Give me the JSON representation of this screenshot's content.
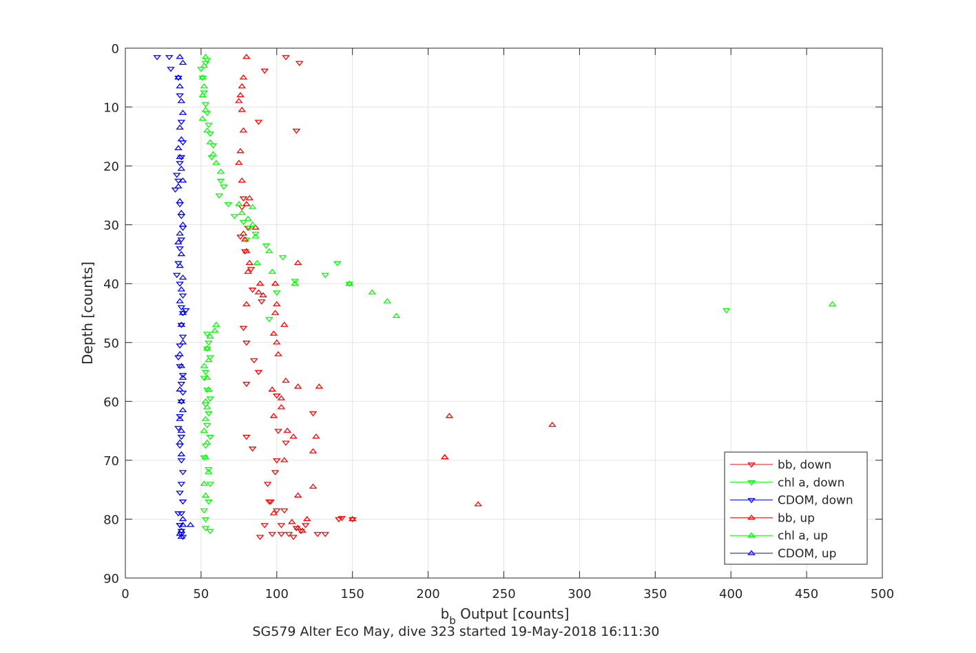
{
  "chart_data": {
    "type": "scatter",
    "title": "",
    "xlabel_main": "b",
    "xlabel_sub": "b",
    "xlabel_rest": " Output [counts]",
    "subtitle": "SG579 Alter Eco May, dive 323 started 19-May-2018 16:11:30",
    "ylabel": "Depth [counts]",
    "xlim": [
      0,
      500
    ],
    "ylim": [
      0,
      90
    ],
    "y_reversed": true,
    "grid": true,
    "legend_position": "bottom-right",
    "xticks": [
      0,
      50,
      100,
      150,
      200,
      250,
      300,
      350,
      400,
      450,
      500
    ],
    "yticks": [
      0,
      10,
      20,
      30,
      40,
      50,
      60,
      70,
      80,
      90
    ],
    "series": [
      {
        "name": "bb, down",
        "color": "#ff0000",
        "marker": "down",
        "x": [
          106,
          115,
          92,
          113,
          88,
          78,
          77,
          81,
          76,
          79,
          83,
          84,
          90,
          78,
          80,
          85,
          88,
          80,
          100,
          124,
          101,
          80,
          84,
          106,
          100,
          99,
          94,
          96,
          95,
          100,
          105,
          92,
          103,
          116,
          108,
          89,
          97,
          103,
          141,
          143,
          150,
          132,
          119,
          111,
          127,
          113
        ],
        "y": [
          1.5,
          2.5,
          3.8,
          14,
          12.5,
          25.5,
          27,
          30.5,
          32,
          34.5,
          37.5,
          41,
          43,
          47.5,
          50,
          53,
          55,
          57,
          59,
          62,
          65,
          66,
          68,
          67,
          70,
          72,
          74,
          77,
          77,
          78.5,
          78.5,
          81,
          81,
          82,
          82.5,
          83,
          82.5,
          82.5,
          80,
          79.8,
          80,
          82.5,
          81,
          83,
          82.5,
          81.5
        ]
      },
      {
        "name": "chl a, down",
        "color": "#00ff00",
        "marker": "down",
        "x": [
          54,
          53,
          50,
          51,
          52,
          53,
          54,
          55,
          56,
          58,
          57,
          63,
          65,
          62,
          68,
          72,
          78,
          82,
          80,
          86,
          93,
          104,
          140,
          132,
          112,
          148,
          100,
          95,
          397,
          54,
          55,
          54,
          56,
          53,
          52,
          54,
          56,
          53,
          55,
          54,
          56,
          53,
          52,
          55,
          56,
          55,
          52,
          53,
          53,
          56
        ],
        "y": [
          2,
          2.5,
          3.5,
          5,
          7.5,
          9.5,
          11,
          13,
          14.5,
          16.5,
          18.5,
          22.5,
          23.5,
          25,
          26.5,
          28.5,
          29.5,
          30.5,
          32.5,
          31.5,
          33.5,
          35.5,
          36.5,
          38.5,
          39.5,
          40,
          41.5,
          46,
          44.5,
          48.5,
          50,
          51,
          52.5,
          55,
          56,
          58,
          59.5,
          60.5,
          62,
          64,
          66,
          67.5,
          69.5,
          71.5,
          74,
          77,
          78.5,
          80,
          81.5,
          82
        ]
      },
      {
        "name": "CDOM, down",
        "color": "#0000ff",
        "marker": "down",
        "x": [
          21,
          29,
          30,
          35,
          36,
          37,
          38,
          37,
          36,
          34,
          35,
          33,
          36,
          37,
          38,
          37,
          36,
          35,
          34,
          36,
          38,
          37,
          40,
          38,
          37,
          38,
          36,
          35,
          36,
          38,
          37,
          38,
          37,
          36,
          35,
          37,
          36,
          37,
          38,
          37,
          36,
          38,
          37,
          36,
          37,
          38,
          37,
          36,
          35
        ],
        "y": [
          1.5,
          1.5,
          3.5,
          5,
          8,
          12.5,
          16,
          18.5,
          19.5,
          21.5,
          22.5,
          24,
          26.5,
          28.5,
          30.5,
          32.5,
          34,
          36.5,
          38.5,
          40,
          42,
          44,
          44.5,
          45,
          47,
          49,
          50.5,
          52.5,
          54,
          55.5,
          57,
          58.5,
          60,
          62.5,
          64.5,
          66,
          67.5,
          70,
          72,
          74,
          75.5,
          77,
          79,
          81,
          82.5,
          83,
          82,
          81,
          79
        ]
      },
      {
        "name": "bb, up",
        "color": "#ff0000",
        "marker": "up",
        "x": [
          80,
          78,
          77,
          76,
          75,
          77,
          78,
          76,
          75,
          77,
          82,
          80,
          86,
          78,
          79,
          80,
          82,
          81,
          89,
          91,
          114,
          99,
          88,
          100,
          99,
          80,
          105,
          98,
          100,
          101,
          106,
          97,
          114,
          103,
          103,
          128,
          98,
          107,
          214,
          282,
          111,
          124,
          126,
          211,
          211,
          105,
          233,
          124,
          114,
          98,
          120,
          117,
          150,
          114,
          110
        ],
        "y": [
          1.5,
          5,
          6.5,
          8,
          9,
          10.5,
          14,
          17.5,
          19.5,
          22.5,
          25.5,
          26.5,
          30.5,
          31.5,
          32.5,
          34.5,
          36.5,
          38,
          40,
          42,
          36.5,
          40,
          41.5,
          43.5,
          45,
          43.5,
          47,
          48.5,
          50,
          52,
          56.5,
          58,
          57.5,
          59.5,
          61,
          57.5,
          62.5,
          65,
          62.5,
          64,
          66,
          68.5,
          66,
          69.5,
          69.5,
          70,
          77.5,
          74.5,
          76,
          79,
          80,
          82,
          80,
          81.5,
          80.5
        ]
      },
      {
        "name": "chl a, up",
        "color": "#00ff00",
        "marker": "up",
        "x": [
          53,
          52,
          51,
          52,
          51,
          53,
          51,
          54,
          56,
          58,
          60,
          63,
          75,
          77,
          81,
          84,
          84,
          86,
          87,
          95,
          97,
          112,
          148,
          163,
          173,
          179,
          467,
          60,
          59,
          56,
          54,
          55,
          52,
          54,
          55,
          53,
          54,
          53,
          52,
          54,
          53,
          55,
          52,
          53
        ],
        "y": [
          1.5,
          3,
          5,
          6.5,
          8,
          10.5,
          12,
          14,
          16,
          18,
          19.5,
          21,
          26.5,
          28,
          29,
          27,
          30,
          32,
          36.5,
          34.5,
          38,
          40,
          40,
          41.5,
          43,
          45.5,
          43.5,
          47,
          48,
          49,
          51,
          53,
          54,
          56,
          58,
          60,
          61,
          63,
          65,
          67,
          69.5,
          72,
          74,
          76
        ]
      },
      {
        "name": "CDOM, up",
        "color": "#0000ff",
        "marker": "up",
        "x": [
          36,
          38,
          35,
          36,
          37,
          38,
          36,
          37,
          35,
          36,
          37,
          38,
          35,
          36,
          37,
          38,
          36,
          35,
          37,
          36,
          38,
          37,
          36,
          38,
          37,
          38,
          36,
          37,
          38,
          36,
          37,
          38,
          36,
          37,
          36,
          37,
          43,
          38,
          37,
          36,
          37,
          38
        ],
        "y": [
          1.5,
          2.5,
          5,
          6.5,
          9,
          11,
          13.5,
          15.5,
          17,
          18.5,
          20.5,
          22.5,
          23.5,
          26,
          28,
          30,
          31.5,
          33,
          35,
          37,
          39,
          41,
          43,
          45,
          47,
          50,
          52,
          54,
          56,
          58,
          60,
          61.5,
          63,
          65,
          67,
          69,
          81,
          81,
          82,
          82.5,
          83,
          80
        ]
      }
    ]
  }
}
